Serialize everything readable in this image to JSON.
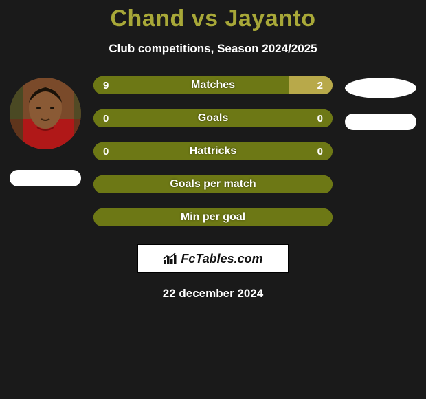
{
  "title": "Chand vs Jayanto",
  "subtitle": "Club competitions, Season 2024/2025",
  "date": "22 december 2024",
  "logo_text": "FcTables.com",
  "colors": {
    "title": "#a8a838",
    "bar_bg": "#a89234",
    "bar_left_fill": "#6d7815",
    "bar_right_fill_a": "#b8a94a",
    "bar_right_fill_b": "#5a5a5a",
    "text_on_bar": "#ffffff",
    "page_bg": "#1a1a1a",
    "subtitle": "#ffffff"
  },
  "bars": [
    {
      "label": "Matches",
      "left_value": "9",
      "right_value": "2",
      "left_num": 9,
      "right_num": 2,
      "left_color": "#6d7815",
      "right_color": "#b8a94a",
      "mid_color": "#8c8a1f"
    },
    {
      "label": "Goals",
      "left_value": "0",
      "right_value": "0",
      "left_num": 0,
      "right_num": 0,
      "left_color": "#6d7815",
      "right_color": "#5a5a5a",
      "mid_color": "#8c8a1f"
    },
    {
      "label": "Hattricks",
      "left_value": "0",
      "right_value": "0",
      "left_num": 0,
      "right_num": 0,
      "left_color": "#6d7815",
      "right_color": "#5a5a5a",
      "mid_color": "#8c8a1f"
    },
    {
      "label": "Goals per match",
      "left_value": "",
      "right_value": "",
      "left_num": 0,
      "right_num": 0,
      "left_color": "#6d7815",
      "right_color": "#6d7815",
      "mid_color": "#8c8a1f"
    },
    {
      "label": "Min per goal",
      "left_value": "",
      "right_value": "",
      "left_num": 0,
      "right_num": 0,
      "left_color": "#6d7815",
      "right_color": "#6d7815",
      "mid_color": "#8c8a1f"
    }
  ],
  "player_left": {
    "name": "Chand"
  },
  "player_right": {
    "name": "Jayanto"
  }
}
